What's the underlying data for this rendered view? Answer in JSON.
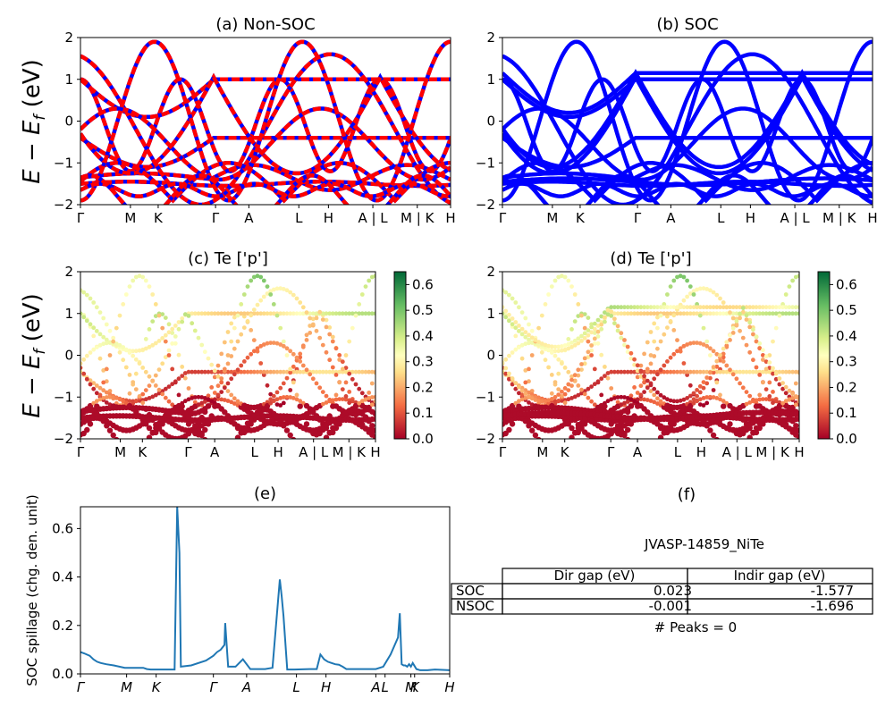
{
  "figure": {
    "ylabel_main": "E − E_f (eV)",
    "ylabel_main_parts": {
      "a": "E − E",
      "sub": "f",
      "b": " (eV)"
    }
  },
  "chart_data": [
    {
      "id": "a",
      "type": "line",
      "title": "(a) Non-SOC",
      "xticks": [
        "Γ",
        "M",
        "K",
        "Γ",
        "A",
        "L",
        "H",
        "A | L",
        "M | K",
        "H"
      ],
      "ylim": [
        -2,
        2
      ],
      "yticks": [
        "−2",
        "−1",
        "0",
        "1",
        "2"
      ],
      "series": [
        {
          "style": "red-blue-dashed",
          "x": [
            0,
            0.15,
            0.3,
            0.45,
            0.6,
            0.75,
            1
          ],
          "y": [
            1.0,
            0.95,
            0.85,
            0.7,
            0.5,
            0.2,
            -0.1
          ]
        }
      ]
    },
    {
      "id": "b",
      "type": "line",
      "title": "(b) SOC",
      "xticks": [
        "Γ",
        "M",
        "K",
        "Γ",
        "A",
        "L",
        "H",
        "A | L",
        "M | K",
        "H"
      ],
      "ylim": [
        -2,
        2
      ],
      "yticks": [
        "−2",
        "−1",
        "0",
        "1",
        "2"
      ],
      "series": [
        {
          "style": "blue",
          "x": [
            0,
            0.15,
            0.3,
            0.45,
            0.6,
            0.75,
            1
          ],
          "y": [
            1.0,
            0.95,
            0.85,
            0.7,
            0.5,
            0.2,
            -0.1
          ]
        }
      ]
    },
    {
      "id": "c",
      "type": "scatter",
      "title": "(c)  Te ['p']",
      "xticks": [
        "Γ",
        "M",
        "K",
        "Γ",
        "A",
        "L",
        "H",
        "A | L",
        "M | K",
        "H"
      ],
      "ylim": [
        -2,
        2
      ],
      "yticks": [
        "−2",
        "−1",
        "0",
        "1",
        "2"
      ],
      "colorbar": {
        "min": 0.0,
        "max": 0.65,
        "ticks": [
          "0.0",
          "0.1",
          "0.2",
          "0.3",
          "0.4",
          "0.5",
          "0.6"
        ],
        "colormap": "RdYlGn"
      }
    },
    {
      "id": "d",
      "type": "scatter",
      "title": "(d) Te ['p']",
      "xticks": [
        "Γ",
        "M",
        "K",
        "Γ",
        "A",
        "L",
        "H",
        "A | L",
        "M | K",
        "H"
      ],
      "ylim": [
        -2,
        2
      ],
      "yticks": [
        "−2",
        "−1",
        "0",
        "1",
        "2"
      ],
      "colorbar": {
        "min": 0.0,
        "max": 0.65,
        "ticks": [
          "0.0",
          "0.1",
          "0.2",
          "0.3",
          "0.4",
          "0.5",
          "0.6"
        ],
        "colormap": "RdYlGn"
      }
    },
    {
      "id": "e",
      "type": "line",
      "title": "(e)",
      "ylabel": "SOC spillage (chg. den. unit)",
      "xticks": [
        "Γ",
        "M",
        "K",
        "Γ",
        "A",
        "L",
        "H",
        "A",
        "L",
        "M",
        "K",
        "H"
      ],
      "ylim": [
        0,
        0.69
      ],
      "yticks": [
        "0.0",
        "0.2",
        "0.4",
        "0.6"
      ],
      "series": [
        {
          "color": "#1f77b4",
          "x": [
            0,
            0.01,
            0.025,
            0.035,
            0.045,
            0.055,
            0.07,
            0.09,
            0.12,
            0.15,
            0.17,
            0.18,
            0.19,
            0.22,
            0.245,
            0.255,
            0.262,
            0.268,
            0.272,
            0.3,
            0.34,
            0.36,
            0.37,
            0.38,
            0.39,
            0.392,
            0.4,
            0.42,
            0.44,
            0.46,
            0.48,
            0.5,
            0.52,
            0.54,
            0.545,
            0.55,
            0.56,
            0.58,
            0.62,
            0.64,
            0.65,
            0.66,
            0.67,
            0.68,
            0.69,
            0.7,
            0.71,
            0.72,
            0.73,
            0.76,
            0.78,
            0.785,
            0.79,
            0.8,
            0.82,
            0.84,
            0.86,
            0.865,
            0.87,
            0.875,
            0.88,
            0.885,
            0.89,
            0.895,
            0.9,
            0.91,
            0.92,
            0.94,
            0.96,
            1.0
          ],
          "y": [
            0.09,
            0.085,
            0.075,
            0.06,
            0.05,
            0.045,
            0.04,
            0.035,
            0.025,
            0.025,
            0.025,
            0.02,
            0.018,
            0.018,
            0.018,
            0.018,
            0.69,
            0.5,
            0.03,
            0.035,
            0.055,
            0.075,
            0.09,
            0.1,
            0.12,
            0.21,
            0.03,
            0.03,
            0.06,
            0.02,
            0.02,
            0.02,
            0.025,
            0.39,
            0.32,
            0.24,
            0.018,
            0.018,
            0.02,
            0.02,
            0.08,
            0.06,
            0.05,
            0.045,
            0.04,
            0.038,
            0.03,
            0.02,
            0.02,
            0.02,
            0.02,
            0.02,
            0.02,
            0.02,
            0.03,
            0.08,
            0.15,
            0.25,
            0.04,
            0.035,
            0.035,
            0.03,
            0.04,
            0.03,
            0.045,
            0.02,
            0.015,
            0.015,
            0.018,
            0.015
          ]
        }
      ]
    }
  ],
  "panel_f": {
    "title": "(f)",
    "subtitle": "JVASP-14859_NiTe",
    "col_headers": [
      "Dir gap (eV)",
      "Indir gap (eV)"
    ],
    "rows": [
      {
        "label": "SOC",
        "dir": "0.023",
        "indir": "-1.577"
      },
      {
        "label": "NSOC",
        "dir": "-0.001",
        "indir": "-1.696"
      }
    ],
    "peaks": "# Peaks = 0"
  }
}
